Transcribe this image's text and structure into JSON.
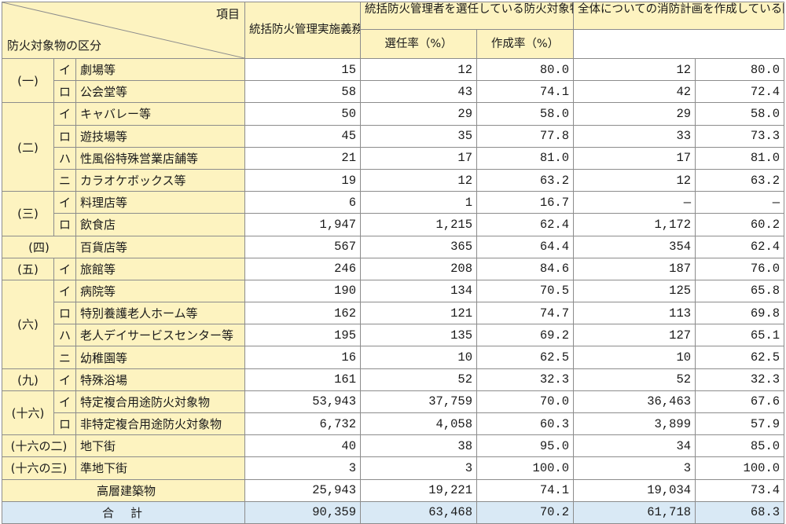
{
  "header": {
    "item_label": "項目",
    "category_label": "防火対象物の区分",
    "col1": "統括防火管理実施義務防火対象物数",
    "col2": "統括防火管理者を選任している防火対象物数",
    "col3": "選任率（%）",
    "col4": "全体についての消防計画を作成している防火対象物数",
    "col5": "作成率（%）"
  },
  "rows": [
    {
      "major": "(一)",
      "sub": "イ",
      "name": "劇場等",
      "v1": "15",
      "v2": "12",
      "v3": "80.0",
      "v4": "12",
      "v5": "80.0"
    },
    {
      "sub": "ロ",
      "name": "公会堂等",
      "v1": "58",
      "v2": "43",
      "v3": "74.1",
      "v4": "42",
      "v5": "72.4"
    },
    {
      "major": "(二)",
      "sub": "イ",
      "name": "キャバレー等",
      "v1": "50",
      "v2": "29",
      "v3": "58.0",
      "v4": "29",
      "v5": "58.0"
    },
    {
      "sub": "ロ",
      "name": "遊技場等",
      "v1": "45",
      "v2": "35",
      "v3": "77.8",
      "v4": "33",
      "v5": "73.3"
    },
    {
      "sub": "ハ",
      "name": "性風俗特殊営業店舗等",
      "v1": "21",
      "v2": "17",
      "v3": "81.0",
      "v4": "17",
      "v5": "81.0"
    },
    {
      "sub": "ニ",
      "name": "カラオケボックス等",
      "v1": "19",
      "v2": "12",
      "v3": "63.2",
      "v4": "12",
      "v5": "63.2"
    },
    {
      "major": "(三)",
      "sub": "イ",
      "name": "料理店等",
      "v1": "6",
      "v2": "1",
      "v3": "16.7",
      "v4": "—",
      "v5": "—"
    },
    {
      "sub": "ロ",
      "name": "飲食店",
      "v1": "1,947",
      "v2": "1,215",
      "v3": "62.4",
      "v4": "1,172",
      "v5": "60.2"
    },
    {
      "major": "(四)",
      "name": "百貨店等",
      "v1": "567",
      "v2": "365",
      "v3": "64.4",
      "v4": "354",
      "v5": "62.4"
    },
    {
      "major": "(五)",
      "sub": "イ",
      "name": "旅館等",
      "v1": "246",
      "v2": "208",
      "v3": "84.6",
      "v4": "187",
      "v5": "76.0"
    },
    {
      "major": "(六)",
      "sub": "イ",
      "name": "病院等",
      "v1": "190",
      "v2": "134",
      "v3": "70.5",
      "v4": "125",
      "v5": "65.8"
    },
    {
      "sub": "ロ",
      "name": "特別養護老人ホーム等",
      "v1": "162",
      "v2": "121",
      "v3": "74.7",
      "v4": "113",
      "v5": "69.8"
    },
    {
      "sub": "ハ",
      "name": "老人デイサービスセンター等",
      "v1": "195",
      "v2": "135",
      "v3": "69.2",
      "v4": "127",
      "v5": "65.1"
    },
    {
      "sub": "ニ",
      "name": "幼稚園等",
      "v1": "16",
      "v2": "10",
      "v3": "62.5",
      "v4": "10",
      "v5": "62.5"
    },
    {
      "major": "(九)",
      "sub": "イ",
      "name": "特殊浴場",
      "v1": "161",
      "v2": "52",
      "v3": "32.3",
      "v4": "52",
      "v5": "32.3"
    },
    {
      "major": "(十六)",
      "sub": "イ",
      "name": "特定複合用途防火対象物",
      "v1": "53,943",
      "v2": "37,759",
      "v3": "70.0",
      "v4": "36,463",
      "v5": "67.6"
    },
    {
      "sub": "ロ",
      "name": "非特定複合用途防火対象物",
      "v1": "6,732",
      "v2": "4,058",
      "v3": "60.3",
      "v4": "3,899",
      "v5": "57.9"
    },
    {
      "major": "(十六の二)",
      "name": "地下街",
      "v1": "40",
      "v2": "38",
      "v3": "95.0",
      "v4": "34",
      "v5": "85.0"
    },
    {
      "major": "(十六の三)",
      "name": "準地下街",
      "v1": "3",
      "v2": "3",
      "v3": "100.0",
      "v4": "3",
      "v5": "100.0"
    },
    {
      "name": "高層建築物",
      "v1": "25,943",
      "v2": "19,221",
      "v3": "74.1",
      "v4": "19,034",
      "v5": "73.4"
    }
  ],
  "total": {
    "label": "合　計",
    "v1": "90,359",
    "v2": "63,468",
    "v3": "70.2",
    "v4": "61,718",
    "v5": "68.3"
  },
  "colors": {
    "category_bg": "#fdf3c0",
    "total_bg": "#d9e9f5",
    "border": "#8c8c8c"
  }
}
